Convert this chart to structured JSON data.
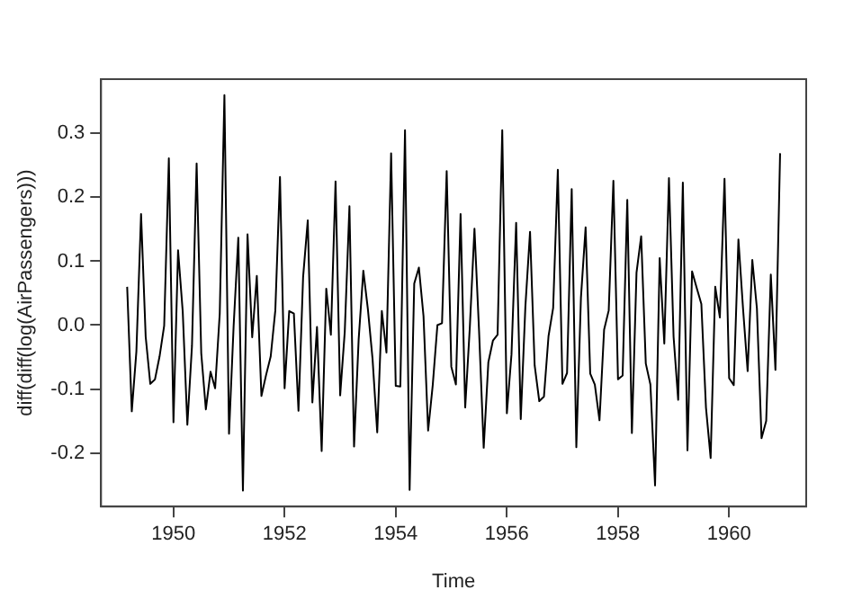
{
  "chart_data": {
    "type": "line",
    "xlabel": "Time",
    "ylabel": "diff(diff(log(AirPassengers)))",
    "x": [
      1949.167,
      1949.25,
      1949.333,
      1949.417,
      1949.5,
      1949.583,
      1949.667,
      1949.75,
      1949.833,
      1949.917,
      1950.0,
      1950.083,
      1950.167,
      1950.25,
      1950.333,
      1950.417,
      1950.5,
      1950.583,
      1950.667,
      1950.75,
      1950.833,
      1950.917,
      1951.0,
      1951.083,
      1951.167,
      1951.25,
      1951.333,
      1951.417,
      1951.5,
      1951.583,
      1951.667,
      1951.75,
      1951.833,
      1951.917,
      1952.0,
      1952.083,
      1952.167,
      1952.25,
      1952.333,
      1952.417,
      1952.5,
      1952.583,
      1952.667,
      1952.75,
      1952.833,
      1952.917,
      1953.0,
      1953.083,
      1953.167,
      1953.25,
      1953.333,
      1953.417,
      1953.5,
      1953.583,
      1953.667,
      1953.75,
      1953.833,
      1953.917,
      1954.0,
      1954.083,
      1954.167,
      1954.25,
      1954.333,
      1954.417,
      1954.5,
      1954.583,
      1954.667,
      1954.75,
      1954.833,
      1954.917,
      1955.0,
      1955.083,
      1955.167,
      1955.25,
      1955.333,
      1955.417,
      1955.5,
      1955.583,
      1955.667,
      1955.75,
      1955.833,
      1955.917,
      1956.0,
      1956.083,
      1956.167,
      1956.25,
      1956.333,
      1956.417,
      1956.5,
      1956.583,
      1956.667,
      1956.75,
      1956.833,
      1956.917,
      1957.0,
      1957.083,
      1957.167,
      1957.25,
      1957.333,
      1957.417,
      1957.5,
      1957.583,
      1957.667,
      1957.75,
      1957.833,
      1957.917,
      1958.0,
      1958.083,
      1958.167,
      1958.25,
      1958.333,
      1958.417,
      1958.5,
      1958.583,
      1958.667,
      1958.75,
      1958.833,
      1958.917,
      1959.0,
      1959.083,
      1959.167,
      1959.25,
      1959.333,
      1959.417,
      1959.5,
      1959.583,
      1959.667,
      1959.75,
      1959.833,
      1959.917,
      1960.0,
      1960.083,
      1960.167,
      1960.25,
      1960.333,
      1960.417,
      1960.5,
      1960.583,
      1960.667,
      1960.75,
      1960.833,
      1960.917
    ],
    "series": [
      {
        "color": "#000000",
        "values": [
          0.06,
          -0.135,
          -0.041,
          0.174,
          -0.018,
          -0.092,
          -0.085,
          -0.049,
          -0.001,
          0.261,
          -0.152,
          0.117,
          0.021,
          -0.156,
          -0.033,
          0.253,
          -0.044,
          -0.132,
          -0.073,
          -0.099,
          0.018,
          0.36,
          -0.17,
          -0.001,
          0.137,
          -0.259,
          0.142,
          -0.019,
          0.077,
          -0.111,
          -0.078,
          -0.049,
          0.023,
          0.232,
          -0.099,
          0.022,
          0.018,
          -0.134,
          0.075,
          0.164,
          -0.121,
          -0.003,
          -0.197,
          0.057,
          -0.015,
          0.225,
          -0.11,
          -0.01,
          0.186,
          -0.19,
          -0.022,
          0.085,
          0.024,
          -0.053,
          -0.168,
          0.022,
          -0.043,
          0.269,
          -0.095,
          -0.096,
          0.305,
          -0.258,
          0.065,
          0.09,
          0.014,
          -0.165,
          -0.093,
          0.0,
          0.003,
          0.241,
          -0.065,
          -0.093,
          0.174,
          -0.129,
          -0.004,
          0.151,
          -0.01,
          -0.192,
          -0.058,
          -0.024,
          -0.015,
          0.305,
          -0.138,
          -0.046,
          0.16,
          -0.147,
          0.029,
          0.146,
          -0.063,
          -0.119,
          -0.112,
          -0.017,
          0.027,
          0.243,
          -0.092,
          -0.075,
          0.213,
          -0.191,
          0.043,
          0.153,
          -0.076,
          -0.093,
          -0.149,
          -0.007,
          0.023,
          0.226,
          -0.085,
          -0.079,
          0.196,
          -0.169,
          0.082,
          0.139,
          -0.06,
          -0.093,
          -0.251,
          0.105,
          -0.029,
          0.23,
          -0.018,
          -0.117,
          0.223,
          -0.196,
          0.084,
          0.058,
          0.033,
          -0.129,
          -0.208,
          0.06,
          0.012,
          0.229,
          -0.083,
          -0.094,
          0.134,
          0.026,
          -0.072,
          0.102,
          0.026,
          -0.177,
          -0.15,
          0.079,
          -0.07,
          0.269
        ]
      }
    ],
    "xlim": [
      1948.697,
      1961.387
    ],
    "xticks": [
      1950,
      1952,
      1954,
      1956,
      1958,
      1960
    ],
    "ylim": [
      -0.284,
      0.385
    ],
    "yticks": [
      -0.2,
      -0.1,
      {
        "value": 0,
        "label": "0.0"
      },
      0.1,
      0.2,
      0.3
    ],
    "grid": false,
    "legend": false,
    "marker": "none",
    "line_style": "solid"
  }
}
